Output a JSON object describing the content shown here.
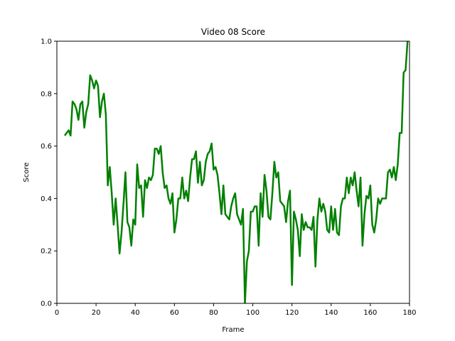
{
  "chart_data": {
    "type": "line",
    "title": "Video 08 Score",
    "xlabel": "Frame",
    "ylabel": "Score",
    "xlim": [
      0,
      180
    ],
    "ylim": [
      0.0,
      1.0
    ],
    "xticks": [
      "0",
      "20",
      "40",
      "60",
      "80",
      "100",
      "120",
      "140",
      "160",
      "180"
    ],
    "yticks": [
      "0.0",
      "0.2",
      "0.4",
      "0.6",
      "0.8",
      "1.0"
    ],
    "grid": false,
    "legend": "none",
    "series": [
      {
        "color": "#008000",
        "x": [
          4,
          5,
          6,
          7,
          8,
          9,
          10,
          11,
          12,
          13,
          14,
          15,
          16,
          17,
          18,
          19,
          20,
          21,
          22,
          23,
          24,
          25,
          26,
          27,
          28,
          29,
          30,
          31,
          32,
          33,
          34,
          35,
          36,
          37,
          38,
          39,
          40,
          41,
          42,
          43,
          44,
          45,
          46,
          47,
          48,
          49,
          50,
          51,
          52,
          53,
          54,
          55,
          56,
          57,
          58,
          59,
          60,
          61,
          62,
          63,
          64,
          65,
          66,
          67,
          68,
          69,
          70,
          71,
          72,
          73,
          74,
          75,
          76,
          77,
          78,
          79,
          80,
          81,
          82,
          83,
          84,
          85,
          86,
          87,
          88,
          89,
          90,
          91,
          92,
          93,
          94,
          95,
          96,
          97,
          98,
          99,
          100,
          101,
          102,
          103,
          104,
          105,
          106,
          107,
          108,
          109,
          110,
          111,
          112,
          113,
          114,
          115,
          116,
          117,
          118,
          119,
          120,
          121,
          122,
          123,
          124,
          125,
          126,
          127,
          128,
          129,
          130,
          131,
          132,
          133,
          134,
          135,
          136,
          137,
          138,
          139,
          140,
          141,
          142,
          143,
          144,
          145,
          146,
          147,
          148,
          149,
          150,
          151,
          152,
          153,
          154,
          155,
          156,
          157,
          158,
          159,
          160,
          161,
          162,
          163,
          164,
          165,
          166,
          167,
          168,
          169,
          170,
          171,
          172,
          173,
          174,
          175,
          176,
          177,
          178,
          179
        ],
        "y": [
          0.64,
          0.65,
          0.66,
          0.64,
          0.77,
          0.76,
          0.74,
          0.7,
          0.76,
          0.77,
          0.67,
          0.73,
          0.76,
          0.87,
          0.85,
          0.82,
          0.85,
          0.83,
          0.71,
          0.77,
          0.8,
          0.72,
          0.45,
          0.52,
          0.42,
          0.3,
          0.4,
          0.3,
          0.19,
          0.27,
          0.38,
          0.5,
          0.31,
          0.29,
          0.22,
          0.32,
          0.3,
          0.53,
          0.44,
          0.45,
          0.33,
          0.47,
          0.44,
          0.48,
          0.47,
          0.49,
          0.59,
          0.59,
          0.57,
          0.6,
          0.5,
          0.44,
          0.45,
          0.4,
          0.38,
          0.42,
          0.27,
          0.32,
          0.4,
          0.4,
          0.48,
          0.4,
          0.43,
          0.39,
          0.48,
          0.55,
          0.55,
          0.58,
          0.46,
          0.54,
          0.45,
          0.47,
          0.54,
          0.57,
          0.58,
          0.61,
          0.51,
          0.52,
          0.49,
          0.42,
          0.34,
          0.45,
          0.34,
          0.33,
          0.32,
          0.37,
          0.4,
          0.42,
          0.34,
          0.32,
          0.3,
          0.36,
          0.0,
          0.16,
          0.2,
          0.35,
          0.35,
          0.37,
          0.37,
          0.22,
          0.42,
          0.33,
          0.49,
          0.43,
          0.33,
          0.32,
          0.42,
          0.54,
          0.48,
          0.5,
          0.39,
          0.38,
          0.37,
          0.31,
          0.39,
          0.43,
          0.07,
          0.35,
          0.32,
          0.28,
          0.18,
          0.34,
          0.28,
          0.31,
          0.29,
          0.29,
          0.28,
          0.33,
          0.14,
          0.32,
          0.4,
          0.35,
          0.38,
          0.35,
          0.28,
          0.27,
          0.37,
          0.28,
          0.36,
          0.27,
          0.26,
          0.37,
          0.4,
          0.4,
          0.48,
          0.42,
          0.48,
          0.45,
          0.5,
          0.43,
          0.37,
          0.48,
          0.22,
          0.34,
          0.41,
          0.4,
          0.45,
          0.3,
          0.27,
          0.32,
          0.4,
          0.38,
          0.4,
          0.4,
          0.4,
          0.5,
          0.51,
          0.48,
          0.52,
          0.47,
          0.53,
          0.65,
          0.65,
          0.88,
          0.89,
          1.0
        ]
      }
    ]
  }
}
